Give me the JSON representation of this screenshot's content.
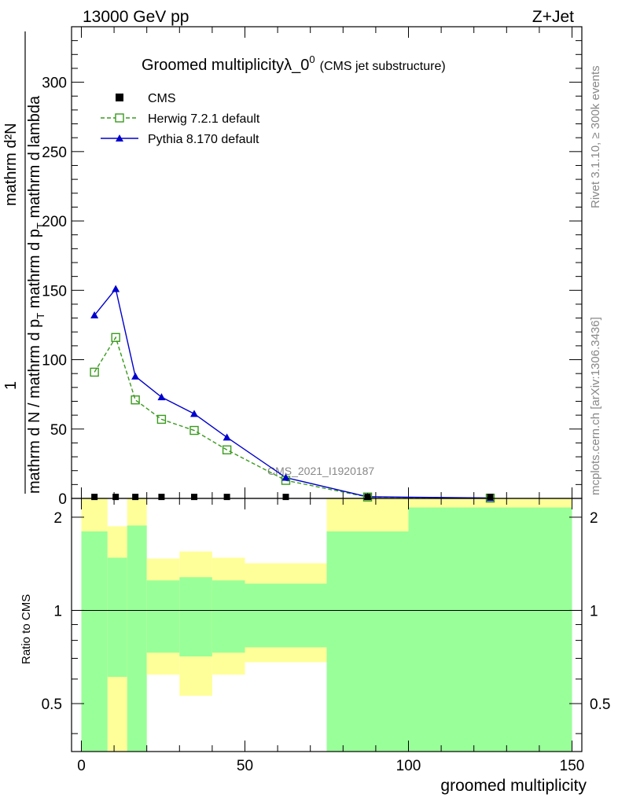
{
  "header": {
    "left": "13000 GeV pp",
    "right": "Z+Jet"
  },
  "side_labels": {
    "rivet": "Rivet 3.1.10, ≥ 300k events",
    "mcplots": "mcplots.cern.ch [arXiv:1306.3436]"
  },
  "chart_data": [
    {
      "type": "line",
      "title": "Groomed multiplicityλ_0",
      "title_sup": "0",
      "subtitle": "(CMS jet substructure)",
      "watermark": "CMS_2021_I1920187",
      "ylabel_numerator": "1",
      "ylabel_numerator_right": "mathrm d²N",
      "ylabel_denominator": "mathrm d N / mathrm d p",
      "ylabel_sub1": "T",
      "ylabel_mid": " mathrm d p",
      "ylabel_sub2": "T",
      "ylabel_tail": " mathrm d lambda",
      "xlim": [
        -3,
        153
      ],
      "ylim": [
        0,
        340
      ],
      "y_ticks": [
        0,
        50,
        100,
        150,
        200,
        250,
        300
      ],
      "y_tick_labels": [
        "0",
        "50",
        "100",
        "150",
        "200",
        "250",
        "300"
      ],
      "legend": [
        {
          "label": "CMS",
          "marker": "square-filled",
          "color": "#000000"
        },
        {
          "label": "Herwig 7.2.1 default",
          "marker": "square-open",
          "color": "#3a9a1e",
          "dash": true
        },
        {
          "label": "Pythia 8.170 default",
          "marker": "triangle",
          "color": "#0000cc",
          "dash": false
        }
      ],
      "series": [
        {
          "name": "CMS",
          "x": [
            4,
            10.5,
            16.5,
            24.5,
            34.5,
            44.5,
            62.5,
            87.5,
            125
          ],
          "values": [
            0.5,
            0.5,
            0.5,
            0.5,
            0.5,
            0.5,
            0.5,
            0.5,
            0.5
          ],
          "color": "#000000"
        },
        {
          "name": "Herwig 7.2.1 default",
          "x": [
            4,
            10.5,
            16.5,
            24.5,
            34.5,
            44.5,
            62.5,
            87.5,
            125
          ],
          "values": [
            91,
            116,
            71,
            57,
            49,
            35,
            13,
            1,
            0.2
          ],
          "color": "#3a9a1e"
        },
        {
          "name": "Pythia 8.170 default",
          "x": [
            4,
            10.5,
            16.5,
            24.5,
            34.5,
            44.5,
            62.5,
            87.5,
            125
          ],
          "values": [
            132,
            151,
            88,
            73,
            61,
            44,
            15,
            1.2,
            0.3
          ],
          "color": "#0000cc"
        }
      ]
    },
    {
      "type": "area",
      "ylabel": "Ratio to CMS",
      "xlabel": "groomed multiplicity",
      "xlim": [
        -3,
        153
      ],
      "ylim": [
        0.35,
        2.3
      ],
      "x_ticks": [
        0,
        50,
        100,
        150
      ],
      "x_tick_labels": [
        "0",
        "50",
        "100",
        "150"
      ],
      "y_ticks": [
        0.5,
        1,
        2
      ],
      "y_tick_labels": [
        "0.5",
        "1",
        "2"
      ],
      "bins": [
        {
          "x0": 0,
          "x1": 8,
          "green": [
            0.35,
            1.8
          ],
          "yellow": [
            0.35,
            2.3
          ]
        },
        {
          "x0": 8,
          "x1": 14,
          "green": [
            0.61,
            1.48
          ],
          "yellow": [
            0.35,
            1.87
          ]
        },
        {
          "x0": 14,
          "x1": 20,
          "green": [
            0.35,
            1.88
          ],
          "yellow": [
            0.35,
            2.3
          ]
        },
        {
          "x0": 20,
          "x1": 30,
          "green": [
            0.73,
            1.25
          ],
          "yellow": [
            0.62,
            1.47
          ]
        },
        {
          "x0": 30,
          "x1": 40,
          "green": [
            0.71,
            1.28
          ],
          "yellow": [
            0.53,
            1.55
          ]
        },
        {
          "x0": 40,
          "x1": 50,
          "green": [
            0.73,
            1.25
          ],
          "yellow": [
            0.62,
            1.48
          ]
        },
        {
          "x0": 50,
          "x1": 75,
          "green": [
            0.76,
            1.22
          ],
          "yellow": [
            0.68,
            1.42
          ]
        },
        {
          "x0": 75,
          "x1": 100,
          "green": [
            0.35,
            1.8
          ],
          "yellow": [
            0.35,
            2.3
          ]
        },
        {
          "x0": 100,
          "x1": 150,
          "green": [
            0.35,
            2.15
          ],
          "yellow": [
            0.35,
            2.3
          ]
        }
      ]
    }
  ]
}
